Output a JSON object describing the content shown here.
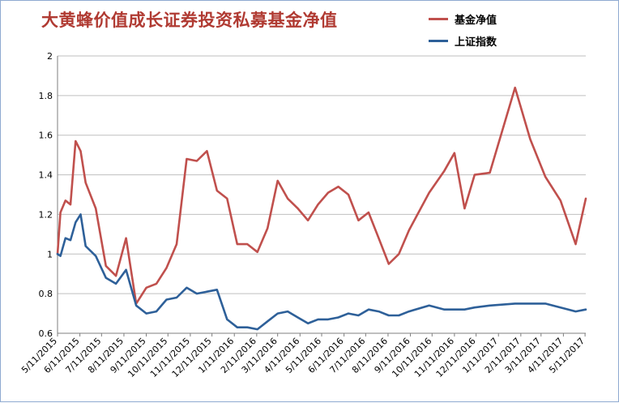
{
  "chart_data": {
    "type": "line",
    "title": "大黄蜂价值成长证券投资私募基金净值",
    "xlabel": "",
    "ylabel": "",
    "ylim": [
      0.6,
      2.0
    ],
    "yticks": [
      "0.6",
      "0.8",
      "1",
      "1.2",
      "1.4",
      "1.6",
      "1.8",
      "2"
    ],
    "x_ticks": [
      "5/11/2015",
      "6/11/2015",
      "7/11/2015",
      "8/11/2015",
      "9/11/2015",
      "10/11/2015",
      "11/11/2015",
      "12/11/2015",
      "1/11/2016",
      "2/11/2016",
      "3/11/2016",
      "4/11/2016",
      "5/11/2016",
      "6/11/2016",
      "7/11/2016",
      "8/11/2016",
      "9/11/2016",
      "10/11/2016",
      "11/11/2016",
      "12/11/2016",
      "1/11/2017",
      "2/11/2017",
      "3/11/2017",
      "4/11/2017",
      "5/11/2017"
    ],
    "grid": true,
    "legend": "top-right",
    "series": [
      {
        "name": "基金净值",
        "color": "#c0504d",
        "points": [
          [
            "2015-05-11",
            1.0
          ],
          [
            "2015-05-15",
            1.21
          ],
          [
            "2015-05-22",
            1.27
          ],
          [
            "2015-05-29",
            1.25
          ],
          [
            "2015-06-05",
            1.57
          ],
          [
            "2015-06-12",
            1.52
          ],
          [
            "2015-06-19",
            1.36
          ],
          [
            "2015-07-03",
            1.23
          ],
          [
            "2015-07-17",
            0.94
          ],
          [
            "2015-07-31",
            0.89
          ],
          [
            "2015-08-14",
            1.08
          ],
          [
            "2015-08-28",
            0.75
          ],
          [
            "2015-09-11",
            0.83
          ],
          [
            "2015-09-25",
            0.85
          ],
          [
            "2015-10-09",
            0.93
          ],
          [
            "2015-10-23",
            1.05
          ],
          [
            "2015-11-06",
            1.48
          ],
          [
            "2015-11-20",
            1.47
          ],
          [
            "2015-12-04",
            1.52
          ],
          [
            "2015-12-18",
            1.32
          ],
          [
            "2016-01-01",
            1.28
          ],
          [
            "2016-01-15",
            1.05
          ],
          [
            "2016-01-29",
            1.05
          ],
          [
            "2016-02-12",
            1.01
          ],
          [
            "2016-02-26",
            1.13
          ],
          [
            "2016-03-11",
            1.37
          ],
          [
            "2016-03-25",
            1.28
          ],
          [
            "2016-04-08",
            1.23
          ],
          [
            "2016-04-22",
            1.17
          ],
          [
            "2016-05-06",
            1.25
          ],
          [
            "2016-05-20",
            1.31
          ],
          [
            "2016-06-03",
            1.34
          ],
          [
            "2016-06-17",
            1.3
          ],
          [
            "2016-07-01",
            1.17
          ],
          [
            "2016-07-15",
            1.21
          ],
          [
            "2016-07-29",
            1.08
          ],
          [
            "2016-08-12",
            0.95
          ],
          [
            "2016-08-26",
            1.0
          ],
          [
            "2016-09-09",
            1.12
          ],
          [
            "2016-10-07",
            1.31
          ],
          [
            "2016-10-28",
            1.42
          ],
          [
            "2016-11-11",
            1.51
          ],
          [
            "2016-11-25",
            1.23
          ],
          [
            "2016-12-09",
            1.4
          ],
          [
            "2016-12-30",
            1.41
          ],
          [
            "2017-02-03",
            1.84
          ],
          [
            "2017-02-24",
            1.58
          ],
          [
            "2017-03-17",
            1.39
          ],
          [
            "2017-04-07",
            1.27
          ],
          [
            "2017-04-28",
            1.05
          ],
          [
            "2017-05-12",
            1.28
          ]
        ]
      },
      {
        "name": "上证指数",
        "color": "#2e6099",
        "points": [
          [
            "2015-05-11",
            1.0
          ],
          [
            "2015-05-15",
            0.99
          ],
          [
            "2015-05-22",
            1.08
          ],
          [
            "2015-05-29",
            1.07
          ],
          [
            "2015-06-05",
            1.16
          ],
          [
            "2015-06-12",
            1.2
          ],
          [
            "2015-06-19",
            1.04
          ],
          [
            "2015-07-03",
            0.99
          ],
          [
            "2015-07-17",
            0.88
          ],
          [
            "2015-07-31",
            0.85
          ],
          [
            "2015-08-14",
            0.92
          ],
          [
            "2015-08-28",
            0.74
          ],
          [
            "2015-09-11",
            0.7
          ],
          [
            "2015-09-25",
            0.71
          ],
          [
            "2015-10-09",
            0.77
          ],
          [
            "2015-10-23",
            0.78
          ],
          [
            "2015-11-06",
            0.83
          ],
          [
            "2015-11-20",
            0.8
          ],
          [
            "2015-12-04",
            0.81
          ],
          [
            "2015-12-18",
            0.82
          ],
          [
            "2016-01-01",
            0.67
          ],
          [
            "2016-01-15",
            0.63
          ],
          [
            "2016-01-29",
            0.63
          ],
          [
            "2016-02-12",
            0.62
          ],
          [
            "2016-02-26",
            0.66
          ],
          [
            "2016-03-11",
            0.7
          ],
          [
            "2016-03-25",
            0.71
          ],
          [
            "2016-04-08",
            0.68
          ],
          [
            "2016-04-22",
            0.65
          ],
          [
            "2016-05-06",
            0.67
          ],
          [
            "2016-05-20",
            0.67
          ],
          [
            "2016-06-03",
            0.68
          ],
          [
            "2016-06-17",
            0.7
          ],
          [
            "2016-07-01",
            0.69
          ],
          [
            "2016-07-15",
            0.72
          ],
          [
            "2016-07-29",
            0.71
          ],
          [
            "2016-08-12",
            0.69
          ],
          [
            "2016-08-26",
            0.69
          ],
          [
            "2016-09-09",
            0.71
          ],
          [
            "2016-10-07",
            0.74
          ],
          [
            "2016-10-28",
            0.72
          ],
          [
            "2016-11-11",
            0.72
          ],
          [
            "2016-11-25",
            0.72
          ],
          [
            "2016-12-09",
            0.73
          ],
          [
            "2016-12-30",
            0.74
          ],
          [
            "2017-02-03",
            0.75
          ],
          [
            "2017-02-24",
            0.75
          ],
          [
            "2017-03-17",
            0.75
          ],
          [
            "2017-04-07",
            0.73
          ],
          [
            "2017-04-28",
            0.71
          ],
          [
            "2017-05-12",
            0.72
          ]
        ]
      }
    ]
  }
}
